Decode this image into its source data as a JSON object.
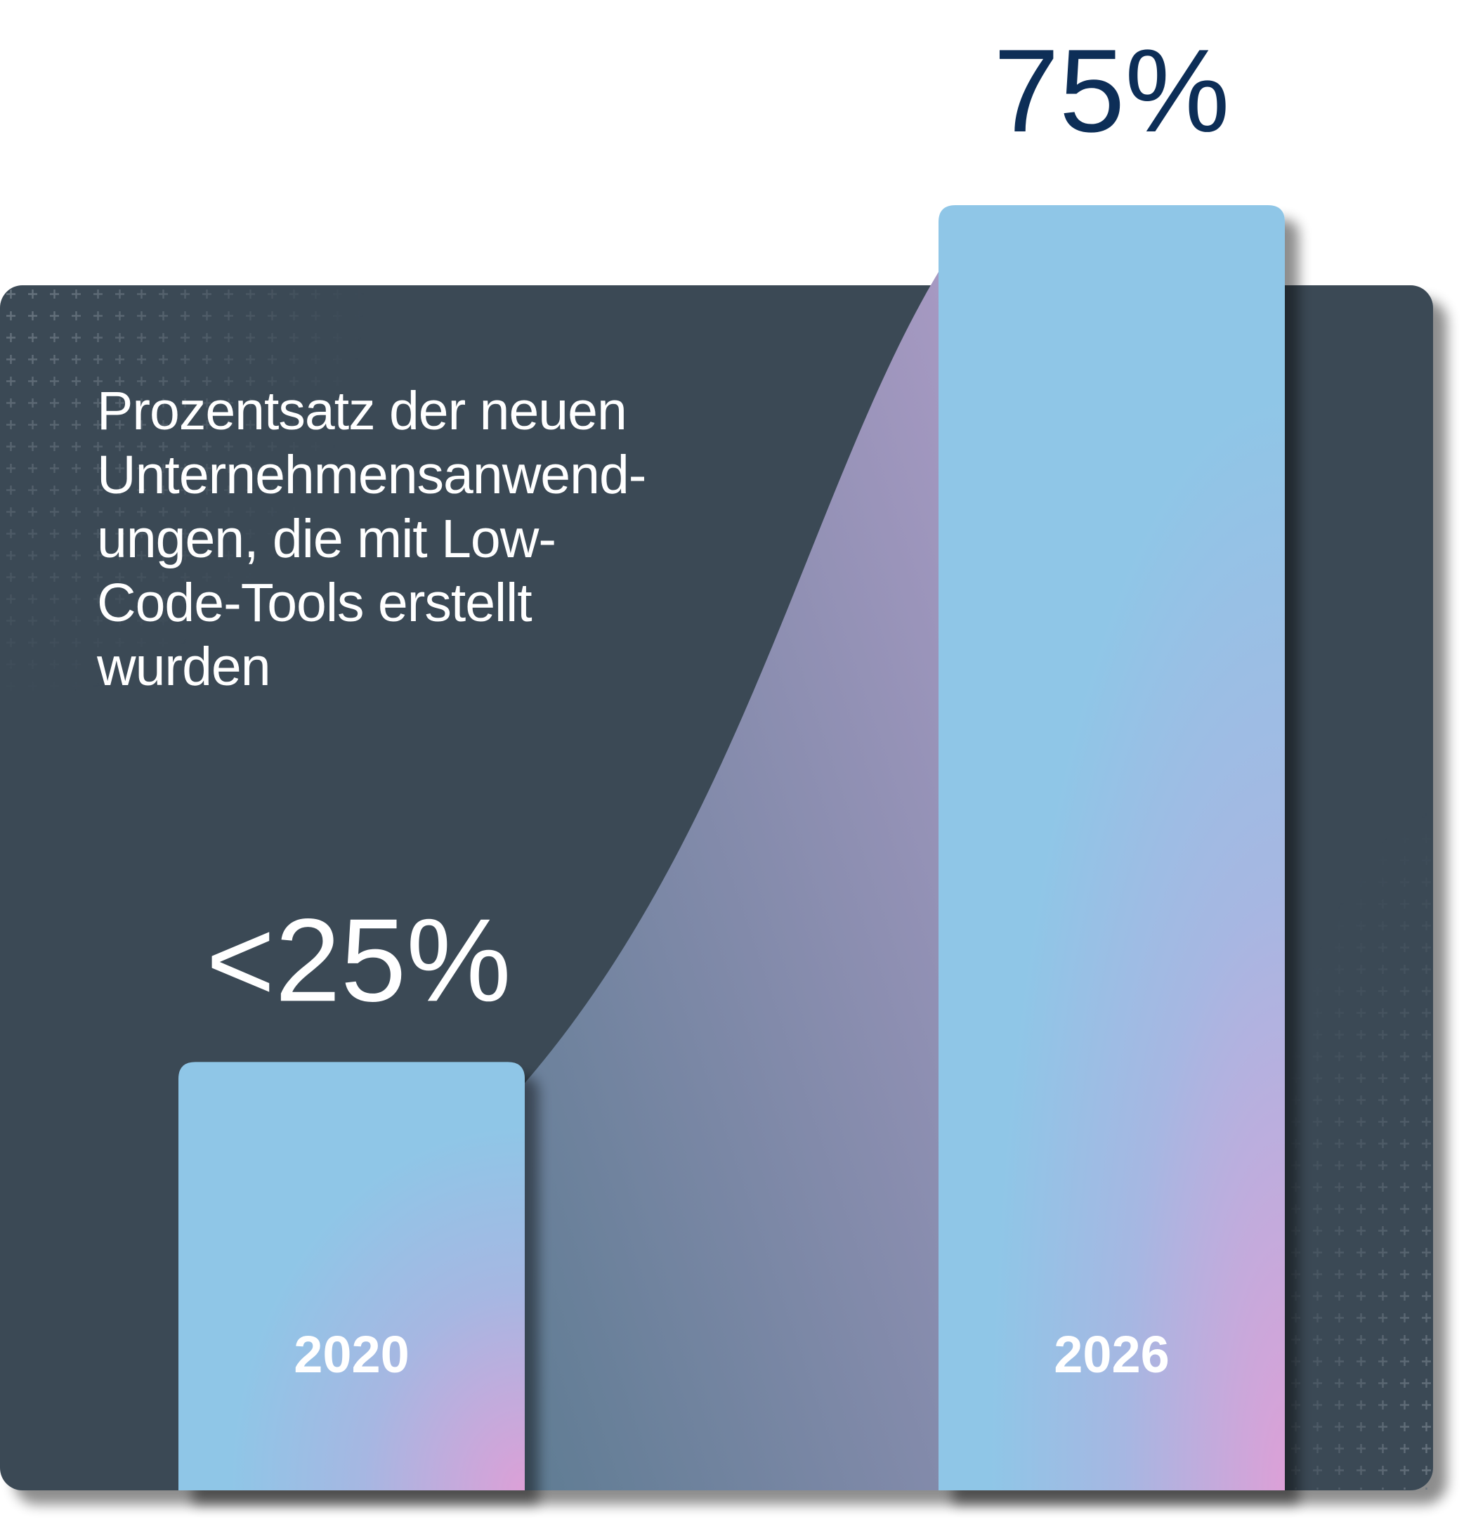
{
  "chart_data": {
    "type": "bar",
    "title": "Prozentsatz der neuen\nUnternehmensanwend-\nungen, die mit Low-\nCode-Tools erstellt\nwurden",
    "categories": [
      "2020",
      "2026"
    ],
    "values": [
      25,
      75
    ],
    "data_labels": [
      "<25%",
      "75%"
    ],
    "xlabel": "",
    "ylabel": "",
    "ylim": [
      0,
      80
    ],
    "grid": false,
    "legend": "none"
  },
  "colors": {
    "panel": "#3b4854",
    "bar_top": "#8fc6e7",
    "bar_bottom_accent": "#dca0d7",
    "curve_fill_top": "#a699c2",
    "curve_fill_bottom": "#5f7c93",
    "label_dark": "#0d2e57",
    "label_light": "#ffffff"
  }
}
